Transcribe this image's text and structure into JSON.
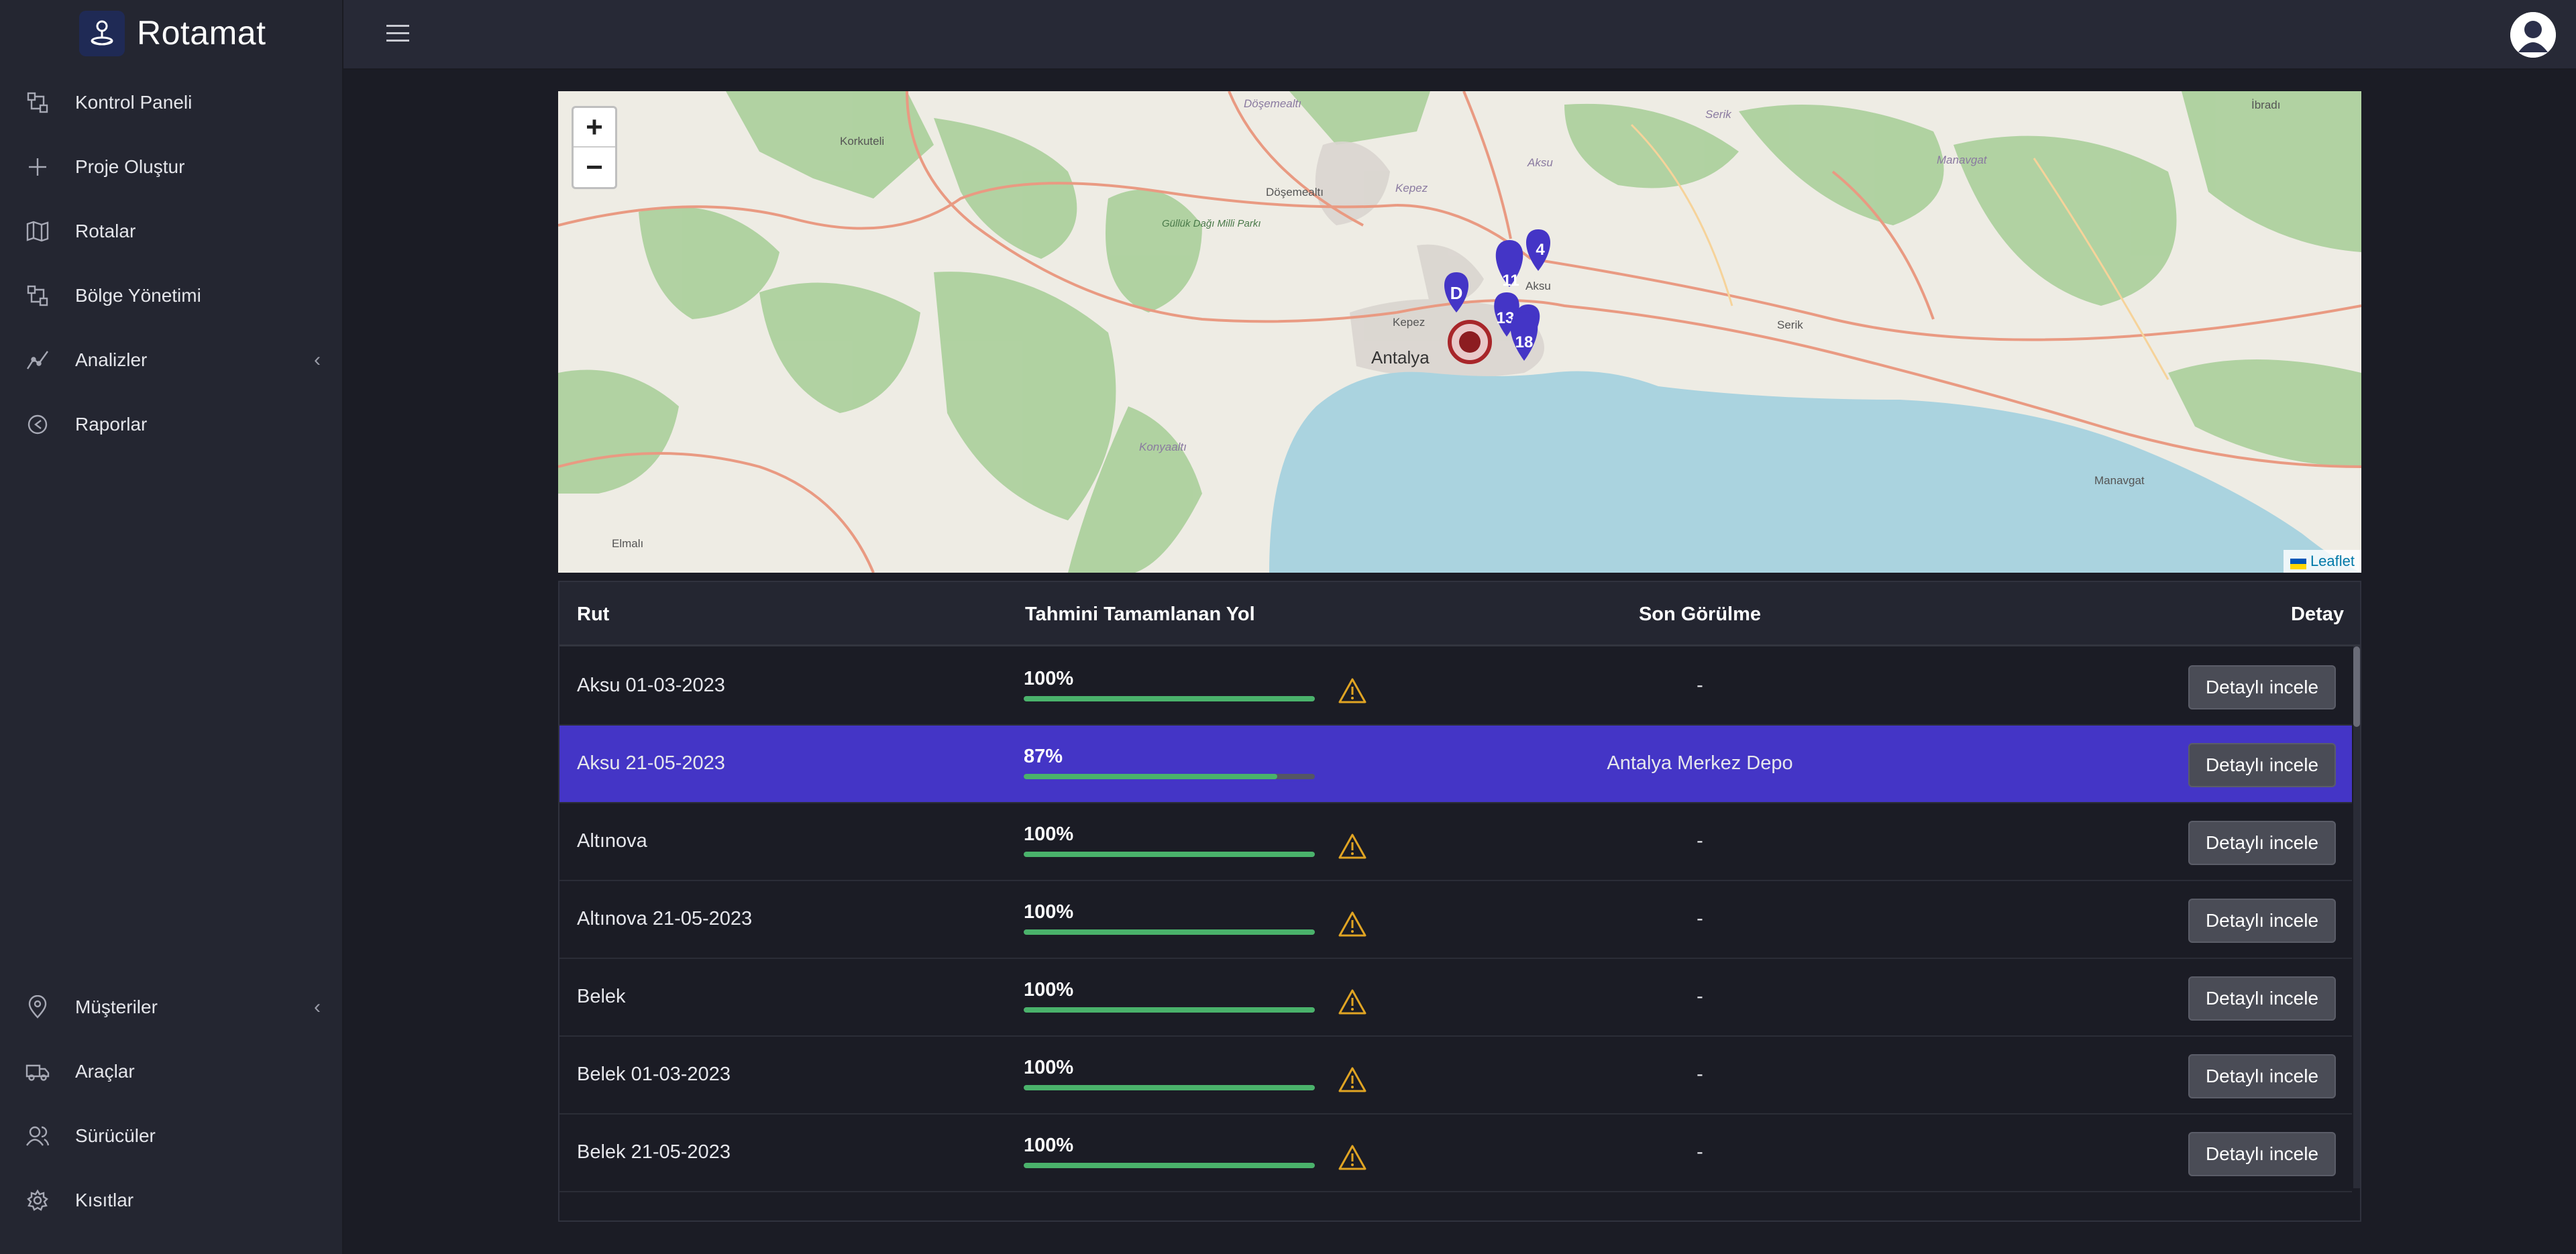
{
  "app": {
    "name": "Rotamat",
    "logo_icon": "route-logo-icon"
  },
  "sidebar": {
    "top_items": [
      {
        "label": "Kontrol Paneli",
        "icon": "dashboard-icon"
      },
      {
        "label": "Proje Oluştur",
        "icon": "plus-icon"
      },
      {
        "label": "Rotalar",
        "icon": "map-icon"
      },
      {
        "label": "Bölge Yönetimi",
        "icon": "region-icon"
      },
      {
        "label": "Analizler",
        "icon": "chart-line-icon",
        "expandable": true,
        "chevron": "‹"
      },
      {
        "label": "Raporlar",
        "icon": "report-icon"
      }
    ],
    "bottom_items": [
      {
        "label": "Müşteriler",
        "icon": "location-pin-icon",
        "expandable": true,
        "chevron": "‹"
      },
      {
        "label": "Araçlar",
        "icon": "truck-icon"
      },
      {
        "label": "Sürücüler",
        "icon": "users-icon"
      },
      {
        "label": "Kısıtlar",
        "icon": "gear-icon"
      }
    ]
  },
  "topbar": {
    "menu_icon": "hamburger-icon",
    "avatar_icon": "user-avatar-icon"
  },
  "map": {
    "zoom_in": "+",
    "zoom_out": "−",
    "attribution": "Leaflet",
    "place_labels": [
      "Korkuteli",
      "Döşemealtı",
      "Döşemealtı",
      "Kepez",
      "Aksu",
      "Serik",
      "Manavgat",
      "İbradı",
      "Güllük Dağı Milli Parkı",
      "Kepez",
      "Antalya",
      "Aksu",
      "Serik",
      "Konyaaltı",
      "Manavgat",
      "Elmalı"
    ],
    "markers": [
      {
        "label": "D",
        "kind": "depot"
      },
      {
        "label": "4",
        "kind": "stop"
      },
      {
        "label": "11",
        "kind": "stop"
      },
      {
        "label": "13",
        "kind": "stop"
      },
      {
        "label": "3",
        "kind": "stop"
      },
      {
        "label": "18",
        "kind": "stop"
      }
    ],
    "colors": {
      "marker": "#4435c6",
      "vehicle": "#a8262a",
      "sea": "#aad3df",
      "forest": "#add19e"
    }
  },
  "table": {
    "headers": {
      "route": "Rut",
      "progress": "Tahmini Tamamlanan Yol",
      "last_seen": "Son Görülme",
      "detail": "Detay"
    },
    "rows": [
      {
        "name": "Aksu 01-03-2023",
        "percent_label": "100%",
        "progress": 1.0,
        "warning": true,
        "last_seen": "-",
        "button": "Detaylı incele",
        "selected": false
      },
      {
        "name": "Aksu 21-05-2023",
        "percent_label": "87%",
        "progress": 0.87,
        "warning": false,
        "last_seen": "Antalya Merkez Depo",
        "button": "Detaylı incele",
        "selected": true
      },
      {
        "name": "Altınova",
        "percent_label": "100%",
        "progress": 1.0,
        "warning": true,
        "last_seen": "-",
        "button": "Detaylı incele",
        "selected": false
      },
      {
        "name": "Altınova 21-05-2023",
        "percent_label": "100%",
        "progress": 1.0,
        "warning": true,
        "last_seen": "-",
        "button": "Detaylı incele",
        "selected": false
      },
      {
        "name": "Belek",
        "percent_label": "100%",
        "progress": 1.0,
        "warning": true,
        "last_seen": "-",
        "button": "Detaylı incele",
        "selected": false
      },
      {
        "name": "Belek 01-03-2023",
        "percent_label": "100%",
        "progress": 1.0,
        "warning": true,
        "last_seen": "-",
        "button": "Detaylı incele",
        "selected": false
      },
      {
        "name": "Belek 21-05-2023",
        "percent_label": "100%",
        "progress": 1.0,
        "warning": true,
        "last_seen": "-",
        "button": "Detaylı incele",
        "selected": false
      }
    ],
    "colors": {
      "progress": "#4ab26b",
      "warning": "#e0a423",
      "selected_row": "#4435c6"
    }
  }
}
